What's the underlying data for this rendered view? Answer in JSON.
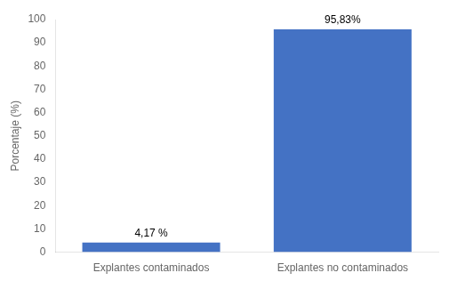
{
  "chart_data": {
    "type": "bar",
    "categories": [
      "Explantes contaminados",
      "Explantes no contaminados"
    ],
    "values": [
      4.17,
      95.83
    ],
    "value_labels": [
      "4,17 %",
      "95,83%"
    ],
    "data_labels": true,
    "color": "#4472c4",
    "ylabel": "Porcentaje (%)",
    "ylim": [
      0,
      100
    ],
    "yticks": [
      0,
      10,
      20,
      30,
      40,
      50,
      60,
      70,
      80,
      90,
      100
    ],
    "grid": false
  }
}
